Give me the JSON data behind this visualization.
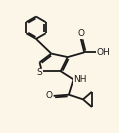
{
  "background_color": "#fbf6e8",
  "line_color": "#1a1a1a",
  "line_width": 1.3,
  "figsize": [
    1.19,
    1.33
  ],
  "dpi": 100,
  "atoms": {
    "S": {
      "label": "S"
    },
    "N": {
      "label": "NH"
    },
    "O1": {
      "label": "O"
    },
    "O2": {
      "label": "OH"
    },
    "O3": {
      "label": "O"
    }
  }
}
